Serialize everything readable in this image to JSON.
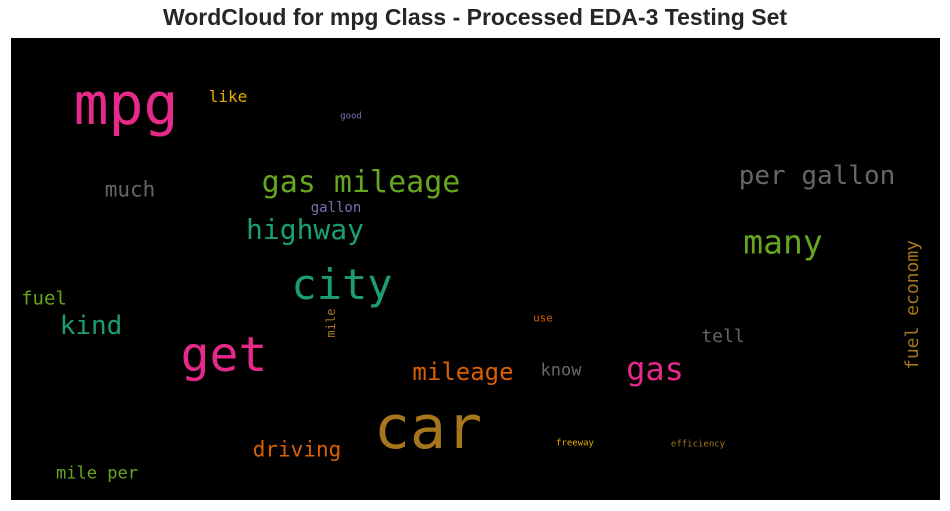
{
  "chart_data": {
    "type": "wordcloud",
    "title": "WordCloud for mpg Class - Processed EDA-3 Testing Set",
    "background": "#000000",
    "words": [
      {
        "text": "mpg",
        "weight": 1.0,
        "color": "#e7298a"
      },
      {
        "text": "car",
        "weight": 1.0,
        "color": "#a6761d"
      },
      {
        "text": "get",
        "weight": 0.85,
        "color": "#e7298a"
      },
      {
        "text": "city",
        "weight": 0.72,
        "color": "#1b9e77"
      },
      {
        "text": "gas mileage",
        "weight": 0.5,
        "color": "#66a61e"
      },
      {
        "text": "many",
        "weight": 0.55,
        "color": "#66a61e"
      },
      {
        "text": "gas",
        "weight": 0.5,
        "color": "#e7298a"
      },
      {
        "text": "highway",
        "weight": 0.45,
        "color": "#1b9e77"
      },
      {
        "text": "per gallon",
        "weight": 0.42,
        "color": "#666666"
      },
      {
        "text": "mileage",
        "weight": 0.4,
        "color": "#d95f02"
      },
      {
        "text": "kind",
        "weight": 0.4,
        "color": "#1b9e77"
      },
      {
        "text": "driving",
        "weight": 0.35,
        "color": "#d95f02"
      },
      {
        "text": "much",
        "weight": 0.3,
        "color": "#666666"
      },
      {
        "text": "fuel economy",
        "weight": 0.28,
        "color": "#a6761d"
      },
      {
        "text": "fuel",
        "weight": 0.28,
        "color": "#66a61e"
      },
      {
        "text": "mile per",
        "weight": 0.27,
        "color": "#66a61e"
      },
      {
        "text": "tell",
        "weight": 0.26,
        "color": "#666666"
      },
      {
        "text": "know",
        "weight": 0.25,
        "color": "#666666"
      },
      {
        "text": "like",
        "weight": 0.24,
        "color": "#e6ab02"
      },
      {
        "text": "gallon",
        "weight": 0.22,
        "color": "#7570b3"
      },
      {
        "text": "mile",
        "weight": 0.18,
        "color": "#a6761d"
      },
      {
        "text": "use",
        "weight": 0.16,
        "color": "#d95f02"
      },
      {
        "text": "good",
        "weight": 0.12,
        "color": "#7570b3"
      },
      {
        "text": "freeway",
        "weight": 0.12,
        "color": "#e6ab02"
      },
      {
        "text": "efficiency",
        "weight": 0.12,
        "color": "#a6761d"
      }
    ]
  }
}
